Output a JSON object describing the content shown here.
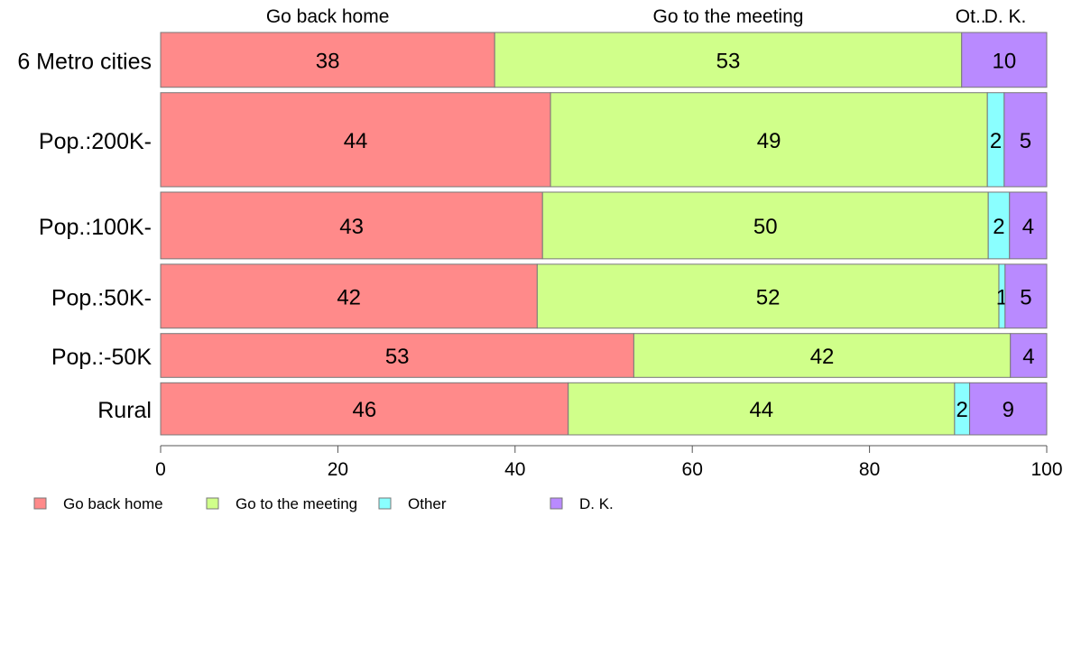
{
  "chart_data": {
    "type": "bar",
    "orientation": "horizontal",
    "stacked": true,
    "categories": [
      "6 Metro cities",
      "Pop.:200K-",
      "Pop.:100K-",
      "Pop.:50K-",
      "Pop.:-50K",
      "Rural"
    ],
    "bar_weights": [
      60,
      103,
      73,
      70,
      48,
      57
    ],
    "series": [
      {
        "name": "Go back home",
        "color": "#ff8a8a",
        "values": [
          37.7,
          44.0,
          43.1,
          42.5,
          53.4,
          46.0
        ],
        "labels": [
          "38",
          "44",
          "43",
          "42",
          "53",
          "46"
        ]
      },
      {
        "name": "Go to the meeting",
        "color": "#d0ff8a",
        "values": [
          52.7,
          49.3,
          50.3,
          52.1,
          42.5,
          43.6
        ],
        "labels": [
          "53",
          "49",
          "50",
          "52",
          "42",
          "44"
        ]
      },
      {
        "name": "Other",
        "color": "#8affff",
        "values": [
          0,
          1.9,
          2.4,
          0.7,
          0,
          1.7
        ],
        "labels": [
          "",
          "2",
          "2",
          "1",
          "",
          "2"
        ]
      },
      {
        "name": "D. K.",
        "color": "#b98aff",
        "values": [
          9.6,
          4.8,
          4.2,
          4.7,
          4.1,
          8.7
        ],
        "labels": [
          "10",
          "5",
          "4",
          "5",
          "4",
          "9"
        ]
      }
    ],
    "top_labels": [
      "Go back home",
      "Go to the meeting",
      "Ot..",
      "D. K."
    ],
    "xlim": [
      0,
      100
    ],
    "xticks": [
      0,
      20,
      40,
      60,
      80,
      100
    ],
    "xlabel": "",
    "ylabel": "",
    "title": "",
    "grid": false,
    "legend_position": "bottom-left"
  }
}
